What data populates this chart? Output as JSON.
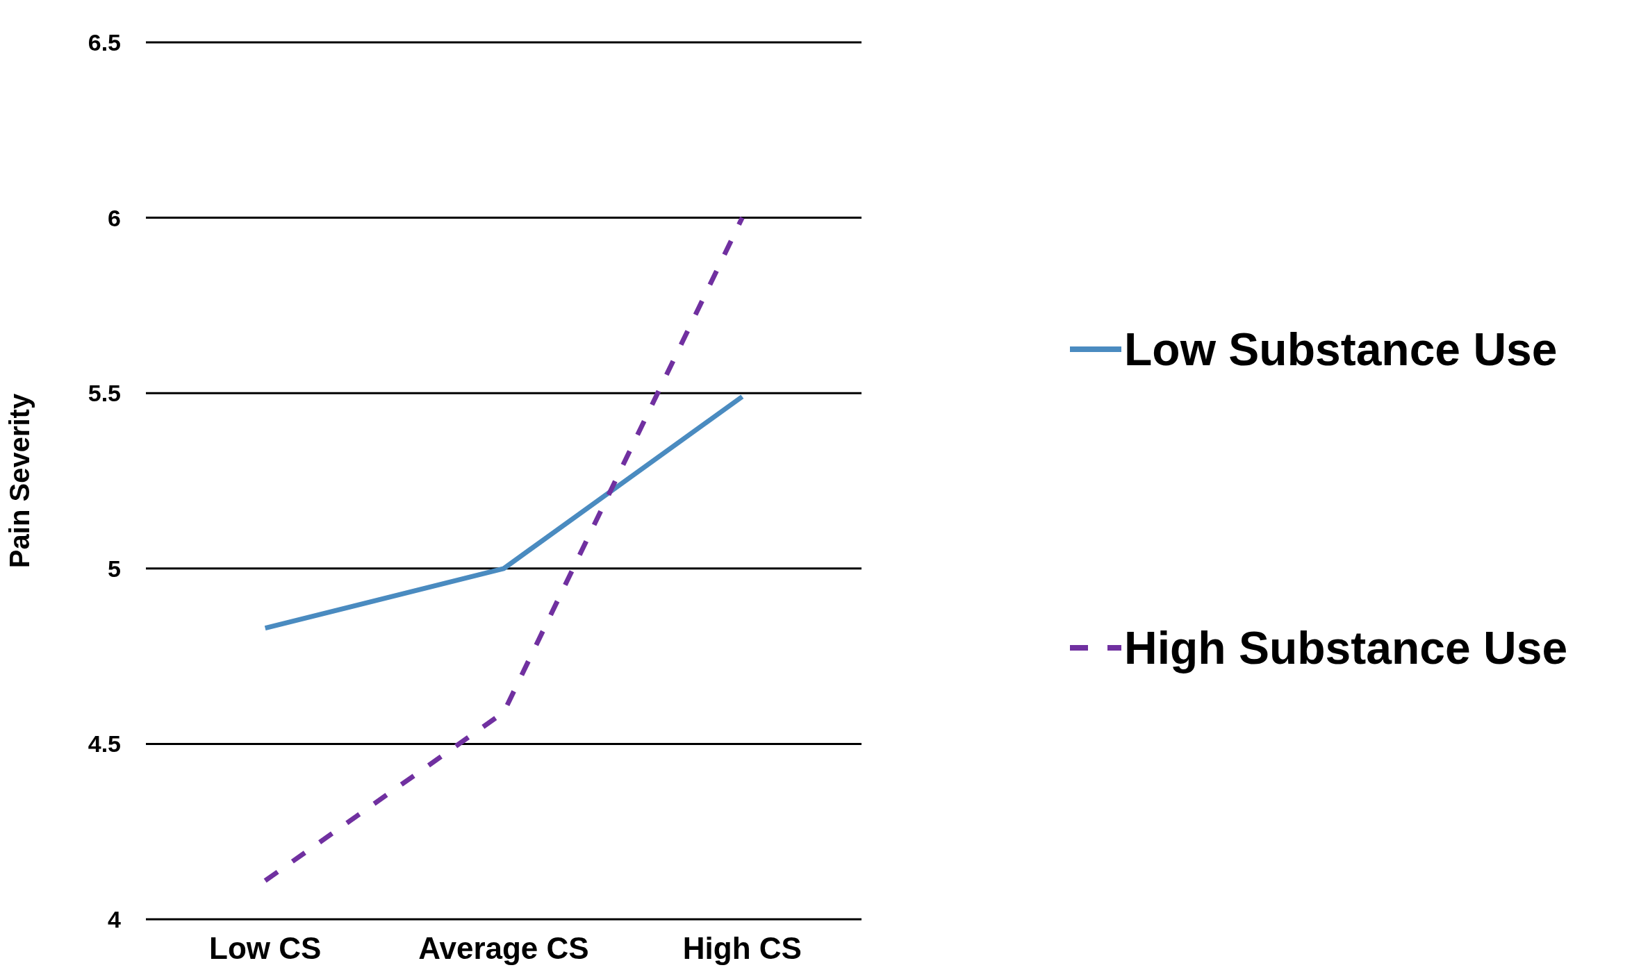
{
  "chart_data": {
    "type": "line",
    "ylabel": "Pain Severity",
    "categories": [
      "Low CS",
      "Average CS",
      "High CS"
    ],
    "series": [
      {
        "name": "Low Substance Use",
        "color": "#4a8bc0",
        "values": [
          4.83,
          5.0,
          5.49
        ],
        "line_style": "solid"
      },
      {
        "name": "High Substance Use",
        "color": "#7030a0",
        "values": [
          4.11,
          4.59,
          6.0
        ],
        "line_style": "dashed"
      }
    ],
    "ylim": [
      4,
      6.5
    ],
    "yticks": [
      4,
      4.5,
      5,
      5.5,
      6,
      6.5
    ],
    "grid": "y",
    "legend": "right",
    "marker": "none"
  }
}
